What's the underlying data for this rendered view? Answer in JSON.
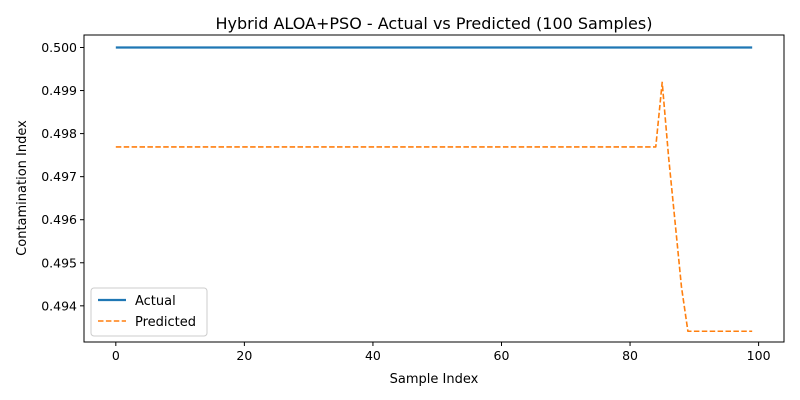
{
  "chart_data": {
    "type": "line",
    "title": "Hybrid ALOA+PSO - Actual vs Predicted (100 Samples)",
    "xlabel": "Sample Index",
    "ylabel": "Contamination Index",
    "xlim": [
      -4.95,
      103.95
    ],
    "ylim": [
      0.49316,
      0.50029
    ],
    "xticks": [
      0,
      20,
      40,
      60,
      80,
      100
    ],
    "xtick_labels": [
      "0",
      "20",
      "40",
      "60",
      "80",
      "100"
    ],
    "yticks": [
      0.494,
      0.495,
      0.496,
      0.497,
      0.498,
      0.499,
      0.5
    ],
    "ytick_labels": [
      "0.494",
      "0.495",
      "0.496",
      "0.497",
      "0.498",
      "0.499",
      "0.500"
    ],
    "grid": false,
    "legend_position": "lower-left",
    "series": [
      {
        "name": "Actual",
        "color": "#1f77b4",
        "style": "solid",
        "points": [
          [
            0,
            0.5
          ],
          [
            99,
            0.5
          ]
        ]
      },
      {
        "name": "Predicted",
        "color": "#ff7f0e",
        "style": "dashed",
        "points": [
          [
            0,
            0.49769
          ],
          [
            84,
            0.49769
          ],
          [
            85,
            0.49919
          ],
          [
            86,
            0.49745
          ],
          [
            87,
            0.49595
          ],
          [
            88,
            0.49444
          ],
          [
            89,
            0.49341
          ],
          [
            99,
            0.49341
          ]
        ]
      }
    ]
  }
}
